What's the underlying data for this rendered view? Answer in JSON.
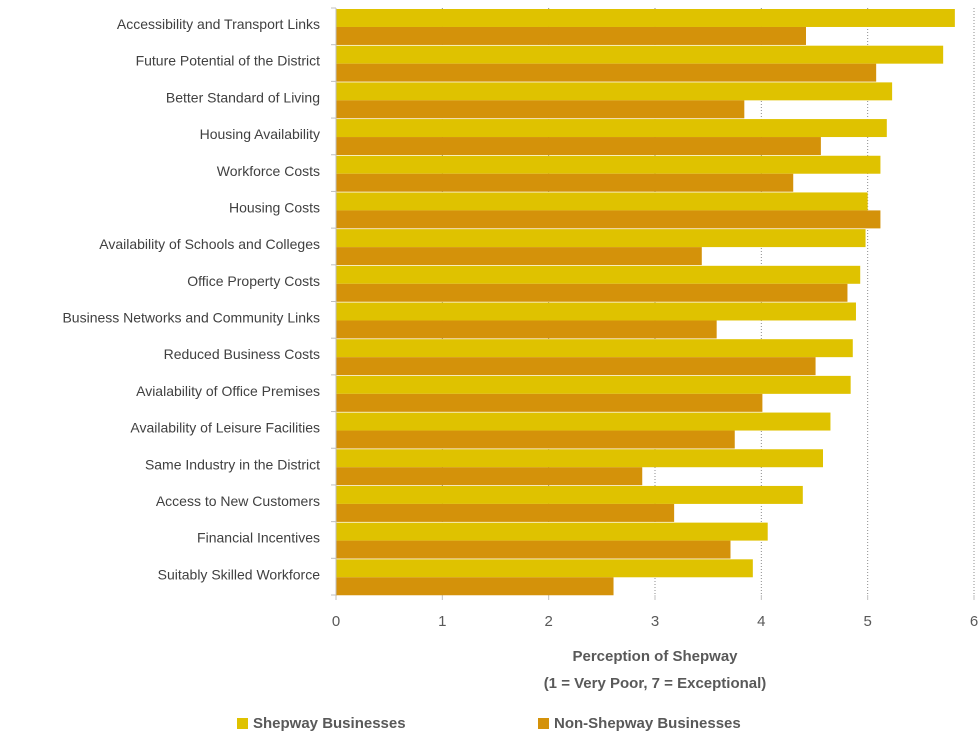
{
  "chart_data": {
    "type": "bar",
    "orientation": "horizontal",
    "categories": [
      "Accessibility and Transport Links",
      "Future Potential of the District",
      "Better Standard of Living",
      "Housing  Availability",
      "Workforce Costs",
      "Housing Costs",
      "Availability of Schools and Colleges",
      "Office Property Costs",
      "Business Networks and Community Links",
      "Reduced Business Costs",
      "Avialability of Office Premises",
      "Availability of Leisure Facilities",
      "Same Industry in the District",
      "Access to New Customers",
      "Financial Incentives",
      "Suitably Skilled Workforce"
    ],
    "series": [
      {
        "name": "Shepway Businesses",
        "color": "#dfc200",
        "values": [
          5.82,
          5.71,
          5.23,
          5.18,
          5.12,
          5.0,
          4.98,
          4.93,
          4.89,
          4.86,
          4.84,
          4.65,
          4.58,
          4.39,
          4.06,
          3.92
        ]
      },
      {
        "name": "Non-Shepway Businesses",
        "color": "#d4920a",
        "values": [
          4.42,
          5.08,
          3.84,
          4.56,
          4.3,
          5.12,
          3.44,
          4.81,
          3.58,
          4.51,
          4.01,
          3.75,
          2.88,
          3.18,
          3.71,
          2.61
        ]
      }
    ],
    "xlabel": [
      "Perception of Shepway",
      "(1 = Very Poor, 7 = Exceptional)"
    ],
    "xlim": [
      0,
      6
    ],
    "xticks": [
      0,
      1,
      2,
      3,
      4,
      5,
      6
    ],
    "grid": true,
    "legend": "bottom"
  }
}
